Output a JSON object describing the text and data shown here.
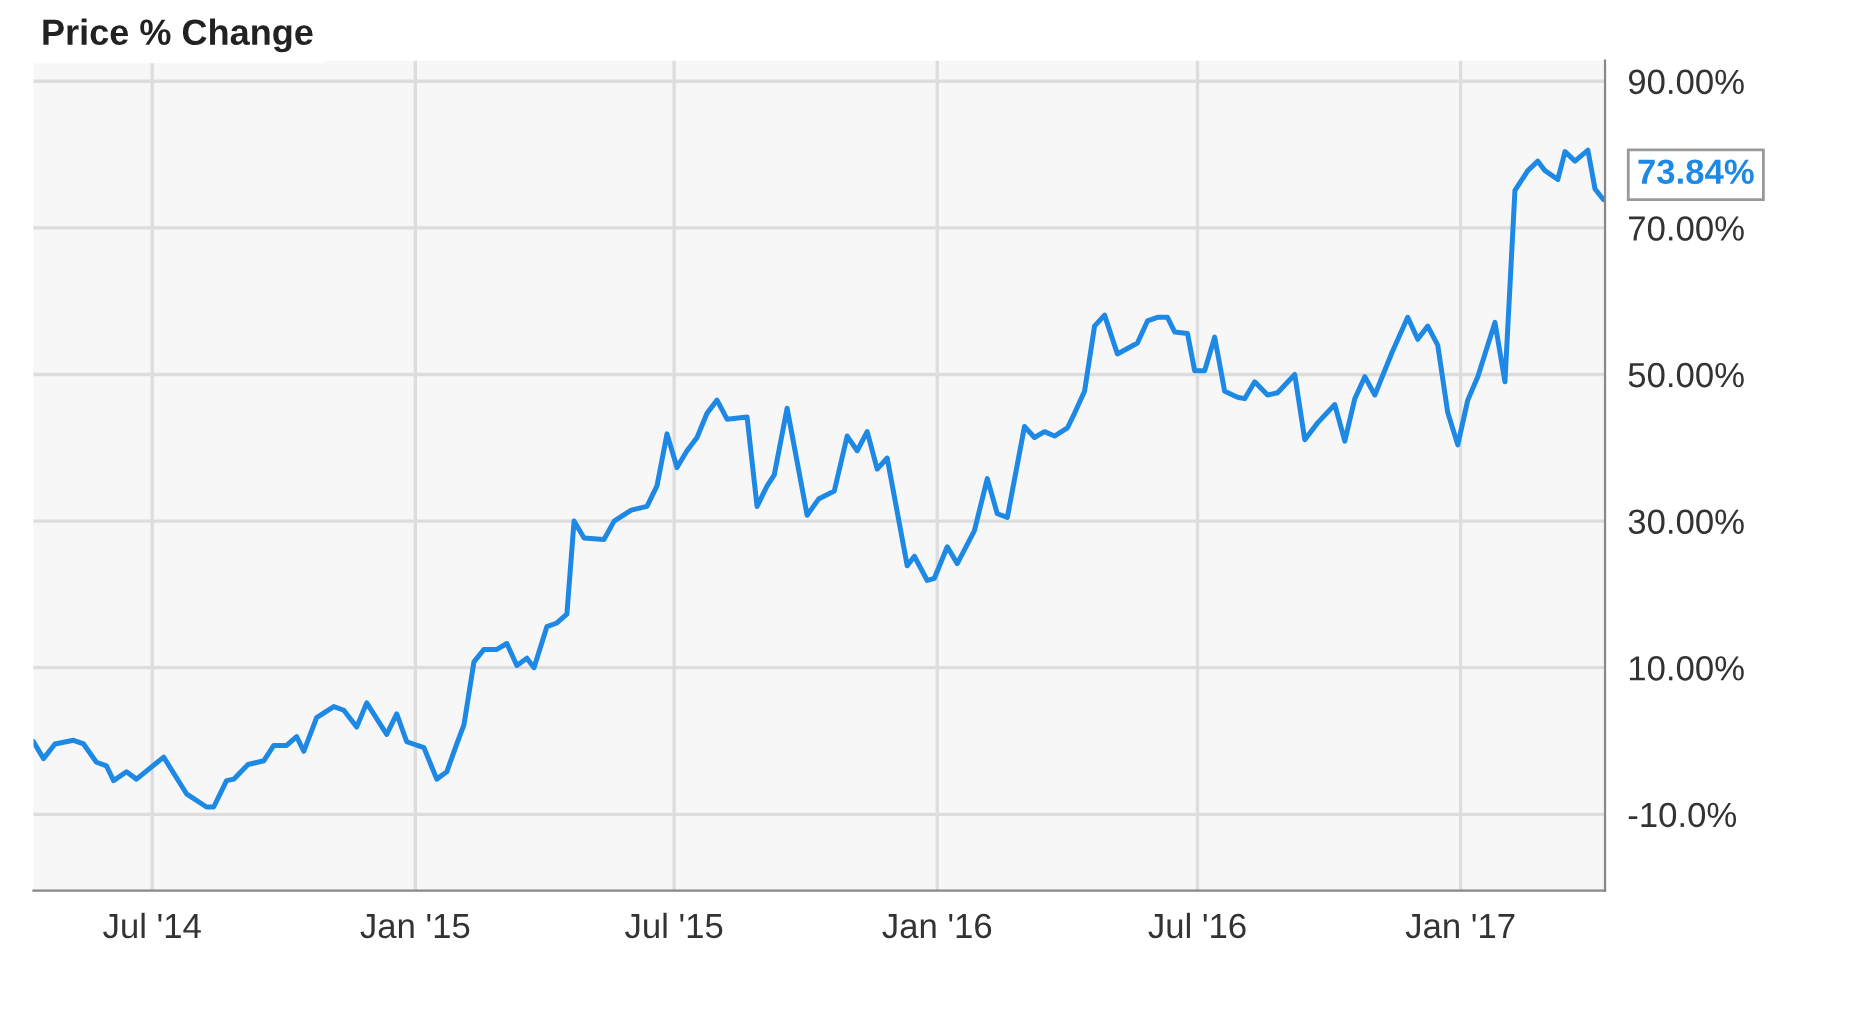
{
  "chart_data": {
    "type": "line",
    "title": "Price % Change",
    "x": [
      "2014-04-09",
      "2014-04-16",
      "2014-04-24",
      "2014-05-07",
      "2014-05-14",
      "2014-05-23",
      "2014-05-30",
      "2014-06-04",
      "2014-06-13",
      "2014-06-20",
      "2014-07-09",
      "2014-07-25",
      "2014-08-08",
      "2014-08-13",
      "2014-08-22",
      "2014-08-27",
      "2014-09-06",
      "2014-09-17",
      "2014-09-24",
      "2014-10-03",
      "2014-10-10",
      "2014-10-15",
      "2014-10-24",
      "2014-11-05",
      "2014-11-12",
      "2014-11-21",
      "2014-11-28",
      "2014-12-12",
      "2014-12-19",
      "2014-12-26",
      "2015-01-07",
      "2015-01-16",
      "2015-01-23",
      "2015-01-30",
      "2015-02-04",
      "2015-02-11",
      "2015-02-18",
      "2015-02-27",
      "2015-03-06",
      "2015-03-13",
      "2015-03-20",
      "2015-03-25",
      "2015-04-03",
      "2015-04-10",
      "2015-04-17",
      "2015-04-22",
      "2015-04-29",
      "2015-05-13",
      "2015-05-20",
      "2015-06-01",
      "2015-06-12",
      "2015-06-19",
      "2015-06-26",
      "2015-07-03",
      "2015-07-10",
      "2015-07-17",
      "2015-07-24",
      "2015-07-31",
      "2015-08-07",
      "2015-08-21",
      "2015-08-28",
      "2015-09-04",
      "2015-09-09",
      "2015-09-18",
      "2015-10-02",
      "2015-10-10",
      "2015-10-21",
      "2015-10-30",
      "2015-11-06",
      "2015-11-13",
      "2015-11-20",
      "2015-11-27",
      "2015-12-11",
      "2015-12-16",
      "2015-12-25",
      "2015-12-30",
      "2016-01-08",
      "2016-01-15",
      "2016-01-27",
      "2016-02-05",
      "2016-02-12",
      "2016-02-19",
      "2016-03-02",
      "2016-03-09",
      "2016-03-16",
      "2016-03-23",
      "2016-04-01",
      "2016-04-06",
      "2016-04-13",
      "2016-04-20",
      "2016-04-27",
      "2016-05-06",
      "2016-05-20",
      "2016-05-27",
      "2016-06-03",
      "2016-06-10",
      "2016-06-15",
      "2016-06-24",
      "2016-06-29",
      "2016-07-06",
      "2016-07-13",
      "2016-07-20",
      "2016-07-29",
      "2016-08-03",
      "2016-08-10",
      "2016-08-19",
      "2016-08-26",
      "2016-09-07",
      "2016-09-14",
      "2016-09-23",
      "2016-10-05",
      "2016-10-12",
      "2016-10-19",
      "2016-10-26",
      "2016-11-02",
      "2016-11-14",
      "2016-11-25",
      "2016-12-02",
      "2016-12-09",
      "2016-12-16",
      "2016-12-23",
      "2016-12-30",
      "2017-01-06",
      "2017-01-13",
      "2017-01-25",
      "2017-02-01",
      "2017-02-08",
      "2017-02-17",
      "2017-02-24",
      "2017-03-01",
      "2017-03-10",
      "2017-03-15",
      "2017-03-22",
      "2017-03-31",
      "2017-04-05",
      "2017-04-11"
    ],
    "series": [
      {
        "color": "#1e88e5",
        "values": [
          -0.1,
          -2.4,
          -0.4,
          0.1,
          -0.4,
          -2.9,
          -3.4,
          -5.4,
          -4.2,
          -5.2,
          -2.2,
          -7.2,
          -9.0,
          -9.0,
          -5.4,
          -5.2,
          -3.2,
          -2.7,
          -0.6,
          -0.6,
          0.6,
          -1.4,
          3.2,
          4.7,
          4.2,
          1.9,
          5.2,
          0.9,
          3.7,
          -0.1,
          -0.9,
          -5.2,
          -4.2,
          -0.4,
          2.2,
          10.8,
          12.5,
          12.5,
          13.3,
          10.3,
          11.3,
          10.0,
          15.6,
          16.1,
          17.3,
          30.0,
          27.7,
          27.5,
          30.0,
          31.5,
          32.0,
          34.8,
          41.9,
          37.3,
          39.6,
          41.4,
          44.7,
          46.5,
          43.9,
          44.2,
          32.0,
          34.8,
          36.3,
          45.4,
          30.8,
          33.0,
          34.1,
          41.6,
          39.6,
          42.2,
          37.1,
          38.6,
          23.9,
          25.2,
          21.9,
          22.2,
          26.5,
          24.2,
          28.7,
          35.8,
          31.0,
          30.5,
          42.9,
          41.4,
          42.2,
          41.6,
          42.7,
          44.7,
          47.7,
          56.6,
          58.1,
          52.8,
          54.3,
          57.3,
          57.8,
          57.8,
          55.8,
          55.6,
          50.5,
          50.5,
          55.1,
          47.7,
          46.9,
          46.7,
          49.0,
          47.2,
          47.5,
          50.0,
          41.1,
          43.4,
          45.9,
          40.9,
          46.7,
          49.7,
          47.2,
          53.0,
          57.8,
          54.8,
          56.6,
          54.0,
          44.8,
          40.4,
          46.5,
          49.7,
          57.1,
          49.0,
          75.1,
          77.8,
          79.1,
          77.8,
          76.6,
          80.4,
          79.1,
          80.6,
          75.3,
          73.84
        ]
      }
    ],
    "annotations": [
      {
        "text": "73.84%",
        "x": "2017-04-11",
        "y": 73.84
      }
    ],
    "xlim": [
      "2014-04-09",
      "2017-04-12"
    ],
    "xticks": [
      {
        "value": "2014-07-01",
        "label": "Jul '14"
      },
      {
        "value": "2015-01-01",
        "label": "Jan '15"
      },
      {
        "value": "2015-07-01",
        "label": "Jul '15"
      },
      {
        "value": "2016-01-01",
        "label": "Jan '16"
      },
      {
        "value": "2016-07-01",
        "label": "Jul '16"
      },
      {
        "value": "2017-01-01",
        "label": "Jan '17"
      }
    ],
    "ylim": [
      -20.4,
      92.8
    ],
    "yticks": [
      {
        "value": -10,
        "label": "-10.0%"
      },
      {
        "value": 10,
        "label": "10.00%"
      },
      {
        "value": 30,
        "label": "30.00%"
      },
      {
        "value": 50,
        "label": "50.00%"
      },
      {
        "value": 70,
        "label": "70.00%"
      },
      {
        "value": 90,
        "label": "90.00%"
      }
    ],
    "grid": true,
    "line_style": "solid",
    "marker": "none"
  }
}
